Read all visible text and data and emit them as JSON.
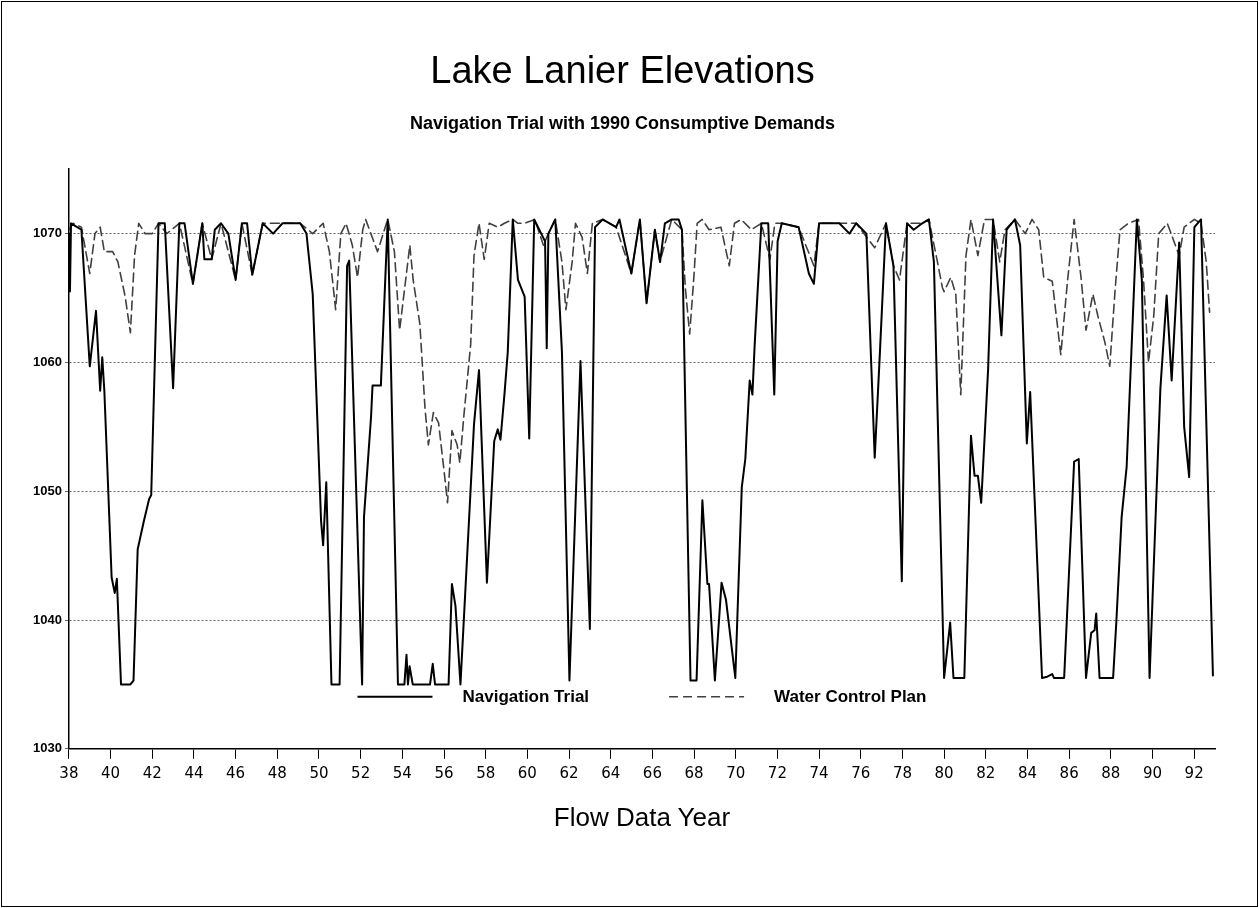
{
  "chart_data": {
    "type": "line",
    "title": "Lake Lanier Elevations",
    "subtitle": "Navigation Trial with 1990 Consumptive Demands",
    "xlabel": "Flow Data Year",
    "xlim": [
      38,
      93
    ],
    "xticks": [
      38,
      40,
      42,
      44,
      46,
      48,
      50,
      52,
      54,
      56,
      58,
      60,
      62,
      64,
      66,
      68,
      70,
      72,
      74,
      76,
      78,
      80,
      82,
      84,
      86,
      88,
      90,
      92
    ],
    "ylim": [
      1030,
      1075
    ],
    "yticks": [
      1030,
      1040,
      1050,
      1060,
      1070
    ],
    "grid": "y",
    "legend": "bottom",
    "marker": "none",
    "series": [
      {
        "name": "Navigation Trial",
        "color": "#000000",
        "line_style": "solid",
        "x": [
          38.0,
          38.05,
          38.1,
          38.6,
          39.0,
          39.3,
          39.5,
          39.6,
          39.7,
          40.05,
          40.2,
          40.3,
          40.5,
          40.95,
          41.1,
          41.3,
          41.6,
          41.85,
          41.95,
          42.3,
          42.6,
          43.0,
          43.3,
          43.55,
          43.95,
          44.4,
          44.5,
          44.85,
          45.0,
          45.3,
          45.65,
          46.0,
          46.3,
          46.55,
          46.8,
          47.3,
          47.8,
          48.25,
          49.1,
          49.4,
          49.7,
          50.1,
          50.2,
          50.35,
          50.6,
          50.99,
          51.35,
          51.45,
          52.07,
          52.16,
          52.5,
          52.57,
          52.97,
          53.3,
          53.79,
          54.1,
          54.2,
          54.27,
          54.35,
          54.5,
          55.33,
          55.46,
          55.57,
          56.22,
          56.38,
          56.55,
          56.79,
          57.44,
          57.68,
          58.06,
          58.41,
          58.58,
          58.71,
          58.9,
          59.06,
          59.3,
          59.55,
          59.87,
          60.09,
          60.33,
          60.85,
          60.93,
          61.01,
          61.34,
          61.66,
          62.02,
          62.55,
          63.0,
          63.25,
          63.61,
          64.26,
          64.42,
          64.99,
          65.4,
          65.72,
          66.12,
          66.37,
          66.6,
          66.93,
          67.26,
          67.42,
          67.66,
          67.83,
          68.12,
          68.4,
          68.64,
          68.72,
          69.0,
          69.32,
          69.53,
          69.98,
          70.29,
          70.46,
          70.67,
          70.8,
          70.91,
          71.23,
          71.56,
          71.85,
          72.01,
          72.21,
          73.02,
          73.51,
          73.75,
          74.0,
          74.48,
          74.97,
          75.46,
          75.78,
          76.27,
          76.67,
          76.92,
          77.21,
          77.57,
          77.97,
          78.22,
          78.54,
          78.95,
          79.27,
          79.51,
          80.0,
          80.29,
          80.45,
          80.97,
          81.29,
          81.46,
          81.62,
          81.78,
          82.11,
          82.35,
          82.75,
          83.0,
          83.4,
          83.65,
          83.97,
          84.13,
          84.7,
          84.95,
          85.19,
          85.27,
          85.76,
          86.24,
          86.46,
          86.81,
          87.06,
          87.22,
          87.3,
          87.46,
          88.11,
          88.27,
          88.52,
          88.76,
          89.25,
          89.49,
          89.86,
          90.38,
          90.68,
          90.92,
          91.28,
          91.52,
          91.76,
          92.01,
          92.33,
          92.9
        ],
        "values": [
          1070,
          1065.5,
          1070.8,
          1070.3,
          1059.7,
          1064,
          1057.8,
          1060.4,
          1057.8,
          1043.3,
          1042.1,
          1043.2,
          1035,
          1035,
          1035.3,
          1045.5,
          1047.7,
          1049.4,
          1049.7,
          1070.8,
          1070.8,
          1058,
          1070.8,
          1070.8,
          1066.1,
          1070.8,
          1068,
          1068,
          1070.3,
          1070.8,
          1070,
          1066.4,
          1070.8,
          1070.8,
          1066.8,
          1070.8,
          1070,
          1070.8,
          1070.8,
          1070,
          1065.3,
          1047.7,
          1045.8,
          1050.7,
          1035,
          1035,
          1067.5,
          1067.9,
          1035,
          1048,
          1055.8,
          1058.2,
          1058.2,
          1071.1,
          1035,
          1035,
          1037.3,
          1035,
          1036.4,
          1035,
          1035,
          1036.6,
          1035,
          1035,
          1042.8,
          1041.1,
          1035,
          1055.2,
          1059.4,
          1042.9,
          1053.9,
          1054.8,
          1054,
          1057.5,
          1060.8,
          1071.1,
          1066.4,
          1065.1,
          1054.1,
          1071.1,
          1069.4,
          1061.1,
          1070,
          1071.1,
          1060.8,
          1035.3,
          1060.1,
          1039.3,
          1070.5,
          1071.1,
          1070.5,
          1071.1,
          1066.9,
          1071.1,
          1064.6,
          1070.3,
          1067.8,
          1070.8,
          1071.1,
          1071.1,
          1070.3,
          1049.7,
          1035.3,
          1035.3,
          1049.3,
          1042.8,
          1042.8,
          1035.3,
          1042.9,
          1041.6,
          1035.5,
          1050.3,
          1052.5,
          1058.6,
          1057.5,
          1061.4,
          1070.8,
          1070.8,
          1057.5,
          1069.4,
          1070.8,
          1070.5,
          1066.9,
          1066.1,
          1070.8,
          1070.8,
          1070.8,
          1070,
          1070.8,
          1070,
          1052.6,
          1060.8,
          1070.8,
          1067.5,
          1043,
          1070.8,
          1070.3,
          1070.8,
          1071.1,
          1067.8,
          1035.5,
          1039.8,
          1035.5,
          1035.5,
          1054.3,
          1051.2,
          1051.2,
          1049.1,
          1059.4,
          1071.1,
          1062.1,
          1070.3,
          1071.1,
          1069.1,
          1053.7,
          1057.7,
          1035.5,
          1035.6,
          1035.8,
          1035.5,
          1035.5,
          1052.3,
          1052.5,
          1035.5,
          1039,
          1039.2,
          1040.5,
          1035.5,
          1035.5,
          1040,
          1048,
          1051.9,
          1071.1,
          1066.4,
          1035.5,
          1058,
          1065.2,
          1058.6,
          1069.3,
          1055,
          1051.1,
          1070.5,
          1071.1,
          1035.7
        ]
      },
      {
        "name": "Water Control Plan",
        "color": "#404040",
        "line_style": "dashed",
        "x": [
          38.0,
          38.2,
          38.6,
          39.0,
          39.25,
          39.5,
          39.7,
          40.1,
          40.35,
          40.7,
          40.95,
          41.15,
          41.35,
          41.65,
          42.0,
          42.3,
          42.7,
          43.3,
          43.95,
          44.4,
          44.85,
          45.3,
          46.0,
          46.3,
          46.8,
          47.3,
          48.25,
          49.1,
          49.7,
          50.2,
          50.5,
          50.8,
          51.05,
          51.3,
          51.6,
          51.85,
          52.1,
          52.24,
          52.81,
          53.3,
          53.62,
          53.87,
          54.19,
          54.36,
          54.52,
          54.84,
          55.09,
          55.25,
          55.49,
          55.74,
          55.98,
          56.17,
          56.38,
          56.63,
          56.76,
          56.95,
          57.28,
          57.44,
          57.68,
          57.93,
          58.17,
          58.58,
          58.9,
          59.3,
          59.55,
          59.87,
          60.36,
          60.77,
          61.01,
          61.34,
          61.66,
          61.85,
          62.15,
          62.31,
          62.63,
          62.88,
          63.12,
          63.61,
          64.26,
          64.99,
          65.4,
          65.72,
          66.12,
          66.36,
          66.93,
          67.42,
          67.58,
          67.79,
          67.99,
          68.15,
          68.39,
          68.72,
          69.29,
          69.69,
          69.94,
          70.26,
          70.75,
          71.23,
          71.64,
          71.88,
          72.21,
          73.02,
          73.75,
          74.0,
          74.97,
          75.78,
          76.67,
          77.21,
          77.57,
          77.86,
          78.22,
          78.95,
          79.27,
          79.68,
          79.92,
          80.0,
          80.32,
          80.56,
          80.8,
          81.05,
          81.29,
          81.62,
          81.94,
          82.35,
          82.67,
          82.92,
          83.4,
          83.89,
          84.22,
          84.54,
          84.78,
          85.19,
          85.6,
          85.92,
          86.24,
          86.57,
          86.81,
          87.14,
          87.38,
          87.71,
          87.95,
          88.2,
          88.44,
          88.84,
          89.33,
          89.57,
          89.81,
          90.06,
          90.3,
          90.71,
          91.28,
          91.52,
          92.01,
          92.33,
          92.58,
          92.74
        ],
        "values": [
          1070.3,
          1070.8,
          1070.5,
          1066.9,
          1070,
          1070.5,
          1068.6,
          1068.6,
          1067.8,
          1065.1,
          1062.3,
          1068.3,
          1070.8,
          1070,
          1070,
          1070.8,
          1070,
          1070.8,
          1066.1,
          1070.8,
          1068,
          1070.8,
          1066.4,
          1070.8,
          1066.8,
          1070.8,
          1070.8,
          1070.8,
          1070,
          1070.8,
          1068.6,
          1064.1,
          1070,
          1070.8,
          1069.1,
          1066.6,
          1070.3,
          1071.1,
          1068.6,
          1071.1,
          1068.6,
          1062.5,
          1066.8,
          1069.1,
          1066.4,
          1063,
          1056.4,
          1053.6,
          1056.1,
          1055.3,
          1051.9,
          1049.1,
          1054.7,
          1053.6,
          1052.2,
          1055.8,
          1061.4,
          1068.3,
          1070.8,
          1068,
          1070.8,
          1070.5,
          1070.8,
          1071.1,
          1070.8,
          1070.8,
          1071.1,
          1069.1,
          1070,
          1071.1,
          1067.8,
          1064.1,
          1067.8,
          1070.8,
          1069.7,
          1066.9,
          1070.8,
          1071.1,
          1070.5,
          1066.9,
          1071.1,
          1064.6,
          1070.3,
          1067.8,
          1071.1,
          1070.3,
          1065.8,
          1062.2,
          1066.6,
          1070.8,
          1071.1,
          1070.3,
          1070.5,
          1067.5,
          1070.8,
          1071.1,
          1070.3,
          1070.8,
          1068,
          1070.8,
          1070.8,
          1070.5,
          1067.5,
          1070.8,
          1070.8,
          1070.8,
          1068.9,
          1070.8,
          1067.5,
          1066.4,
          1070.8,
          1070.8,
          1071.1,
          1067.8,
          1065.8,
          1065.5,
          1066.6,
          1065.3,
          1057.5,
          1068.3,
          1071.1,
          1068.3,
          1071.1,
          1071.1,
          1067.8,
          1070.3,
          1071.1,
          1070,
          1071.1,
          1070.3,
          1066.6,
          1066.3,
          1060.6,
          1066.3,
          1071.1,
          1066.6,
          1062.5,
          1065.3,
          1063.6,
          1061.6,
          1059.7,
          1065.5,
          1070.3,
          1070.8,
          1071.1,
          1066.4,
          1060,
          1063.6,
          1070,
          1070.8,
          1068.3,
          1070.5,
          1071.1,
          1070.8,
          1067.8,
          1063.9
        ]
      }
    ]
  }
}
